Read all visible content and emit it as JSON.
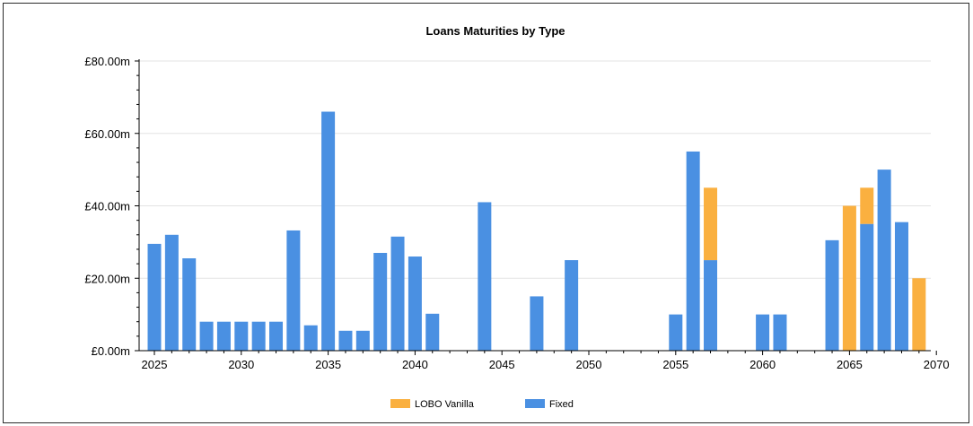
{
  "chart_data": {
    "type": "bar",
    "stacked": true,
    "title": "Loans Maturities by Type",
    "xlabel": "",
    "ylabel": "",
    "x_ticks": [
      2025,
      2030,
      2035,
      2040,
      2045,
      2050,
      2055,
      2060,
      2065,
      2070
    ],
    "xlim": [
      2024.5,
      2070
    ],
    "y_ticks": [
      {
        "value": 0,
        "label": "£0.00m"
      },
      {
        "value": 20,
        "label": "£20.00m"
      },
      {
        "value": 40,
        "label": "£40.00m"
      },
      {
        "value": 60,
        "label": "£60.00m"
      },
      {
        "value": 80,
        "label": "£80.00m"
      }
    ],
    "ylim": [
      0,
      80
    ],
    "y_unit": "£m",
    "grid": true,
    "legend_position": "bottom",
    "x": [
      2025,
      2026,
      2027,
      2028,
      2029,
      2030,
      2031,
      2032,
      2033,
      2034,
      2035,
      2036,
      2037,
      2038,
      2039,
      2040,
      2041,
      2044,
      2047,
      2049,
      2055,
      2056,
      2057,
      2060,
      2061,
      2064,
      2065,
      2066,
      2067,
      2068,
      2069
    ],
    "series": [
      {
        "name": "Fixed",
        "color": "#4a90e2",
        "values": [
          29.5,
          32,
          25.5,
          8,
          8,
          8,
          8,
          8,
          33.2,
          7,
          66,
          5.5,
          5.5,
          27,
          31.5,
          26,
          10.2,
          41,
          15,
          25,
          10,
          55,
          25,
          10,
          10,
          30.5,
          0,
          35,
          50,
          35.5,
          0
        ]
      },
      {
        "name": "LOBO Vanilla",
        "color": "#fab040",
        "values": [
          0,
          0,
          0,
          0,
          0,
          0,
          0,
          0,
          0,
          0,
          0,
          0,
          0,
          0,
          0,
          0,
          0,
          0,
          0,
          0,
          0,
          0,
          20,
          0,
          0,
          0,
          40,
          10,
          0,
          0,
          20
        ]
      }
    ],
    "legend": [
      {
        "name": "LOBO Vanilla",
        "color": "#fab040"
      },
      {
        "name": "Fixed",
        "color": "#4a90e2"
      }
    ]
  }
}
